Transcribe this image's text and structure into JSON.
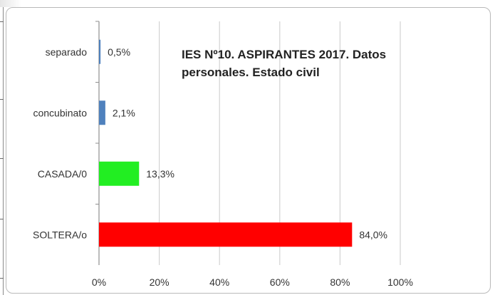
{
  "chart_data": {
    "type": "bar",
    "orientation": "horizontal",
    "title_lines": [
      "IES Nº10. ASPIRANTES 2017. Datos",
      "personales. Estado civil"
    ],
    "categories": [
      "separado",
      "concubinato",
      "CASADA/0",
      "SOLTERA/o"
    ],
    "values": [
      0.5,
      2.1,
      13.3,
      84.0
    ],
    "value_labels": [
      "0,5%",
      "2,1%",
      "13,3%",
      "84,0%"
    ],
    "bar_colors": [
      "#4f81bd",
      "#4f81bd",
      "#22ee22",
      "#ff0000"
    ],
    "xlim": [
      0,
      100
    ],
    "x_ticks": [
      0,
      20,
      40,
      60,
      80,
      100
    ],
    "x_tick_labels": [
      "0%",
      "20%",
      "40%",
      "60%",
      "80%",
      "100%"
    ],
    "grid": true,
    "legend": false
  }
}
